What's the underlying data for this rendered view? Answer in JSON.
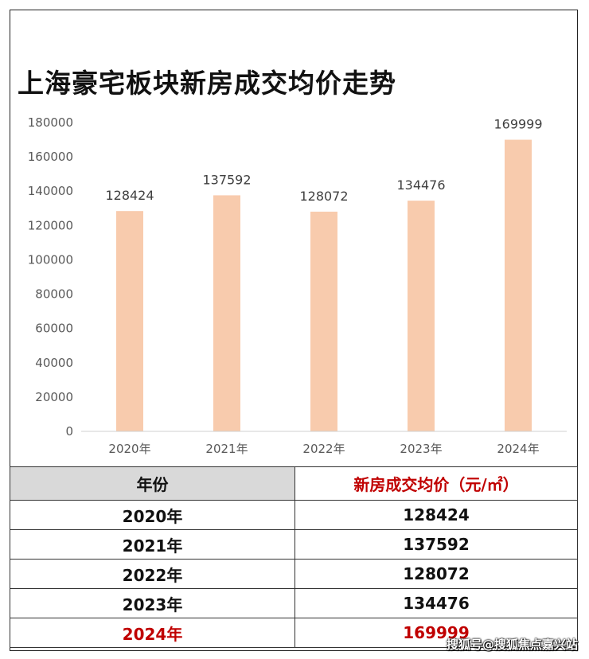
{
  "title": "上海豪宅板块新房成交均价走势",
  "chart_data": {
    "type": "bar",
    "title": "上海豪宅板块新房成交均价走势",
    "categories": [
      "2020年",
      "2021年",
      "2022年",
      "2023年",
      "2024年"
    ],
    "values": [
      128424,
      137592,
      128072,
      134476,
      169999
    ],
    "ylim": [
      0,
      180000
    ],
    "yticks": [
      0,
      20000,
      40000,
      60000,
      80000,
      100000,
      120000,
      140000,
      160000,
      180000
    ],
    "bar_color": "#f8cbad",
    "grid": false,
    "data_labels": true
  },
  "table": {
    "headers": [
      "年份",
      "新房成交均价（元/㎡）"
    ],
    "rows": [
      [
        "2020年",
        "128424"
      ],
      [
        "2021年",
        "137592"
      ],
      [
        "2022年",
        "128072"
      ],
      [
        "2023年",
        "134476"
      ],
      [
        "2024年",
        "169999"
      ]
    ],
    "highlight_color": "#c00000"
  },
  "watermark": "搜狐号@搜狐焦点嘉兴站"
}
